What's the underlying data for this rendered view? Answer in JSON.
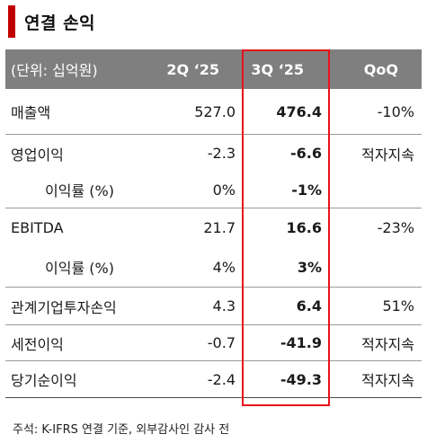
{
  "title": "연결 손익",
  "table": {
    "headers": [
      "(단위: 십억원)",
      "2Q ‘25",
      "3Q ‘25",
      "QoQ"
    ],
    "rows": [
      {
        "label": "매출액",
        "q2": "527.0",
        "q3": "476.4",
        "qoq": "-10%"
      },
      {
        "label": "영업이익",
        "q2": "-2.3",
        "q3": "-6.6",
        "qoq": "적자지속"
      },
      {
        "label": "이익률 (%)",
        "q2": "0%",
        "q3": "-1%",
        "qoq": ""
      },
      {
        "label": "EBITDA",
        "q2": "21.7",
        "q3": "16.6",
        "qoq": "-23%"
      },
      {
        "label": "이익률 (%)",
        "q2": "4%",
        "q3": "3%",
        "qoq": ""
      },
      {
        "label": "관계기업투자손익",
        "q2": "4.3",
        "q3": "6.4",
        "qoq": "51%"
      },
      {
        "label": "세전이익",
        "q2": "-0.7",
        "q3": "-41.9",
        "qoq": "적자지속"
      },
      {
        "label": "당기순이익",
        "q2": "-2.4",
        "q3": "-49.3",
        "qoq": "적자지속"
      }
    ]
  },
  "footnote": "주석: K-IFRS 연결 기준, 외부감사인 감사 전",
  "colors": {
    "accent": "#c00000",
    "highlight_border": "#e8121a",
    "header_bg": "#7f7f7f"
  }
}
